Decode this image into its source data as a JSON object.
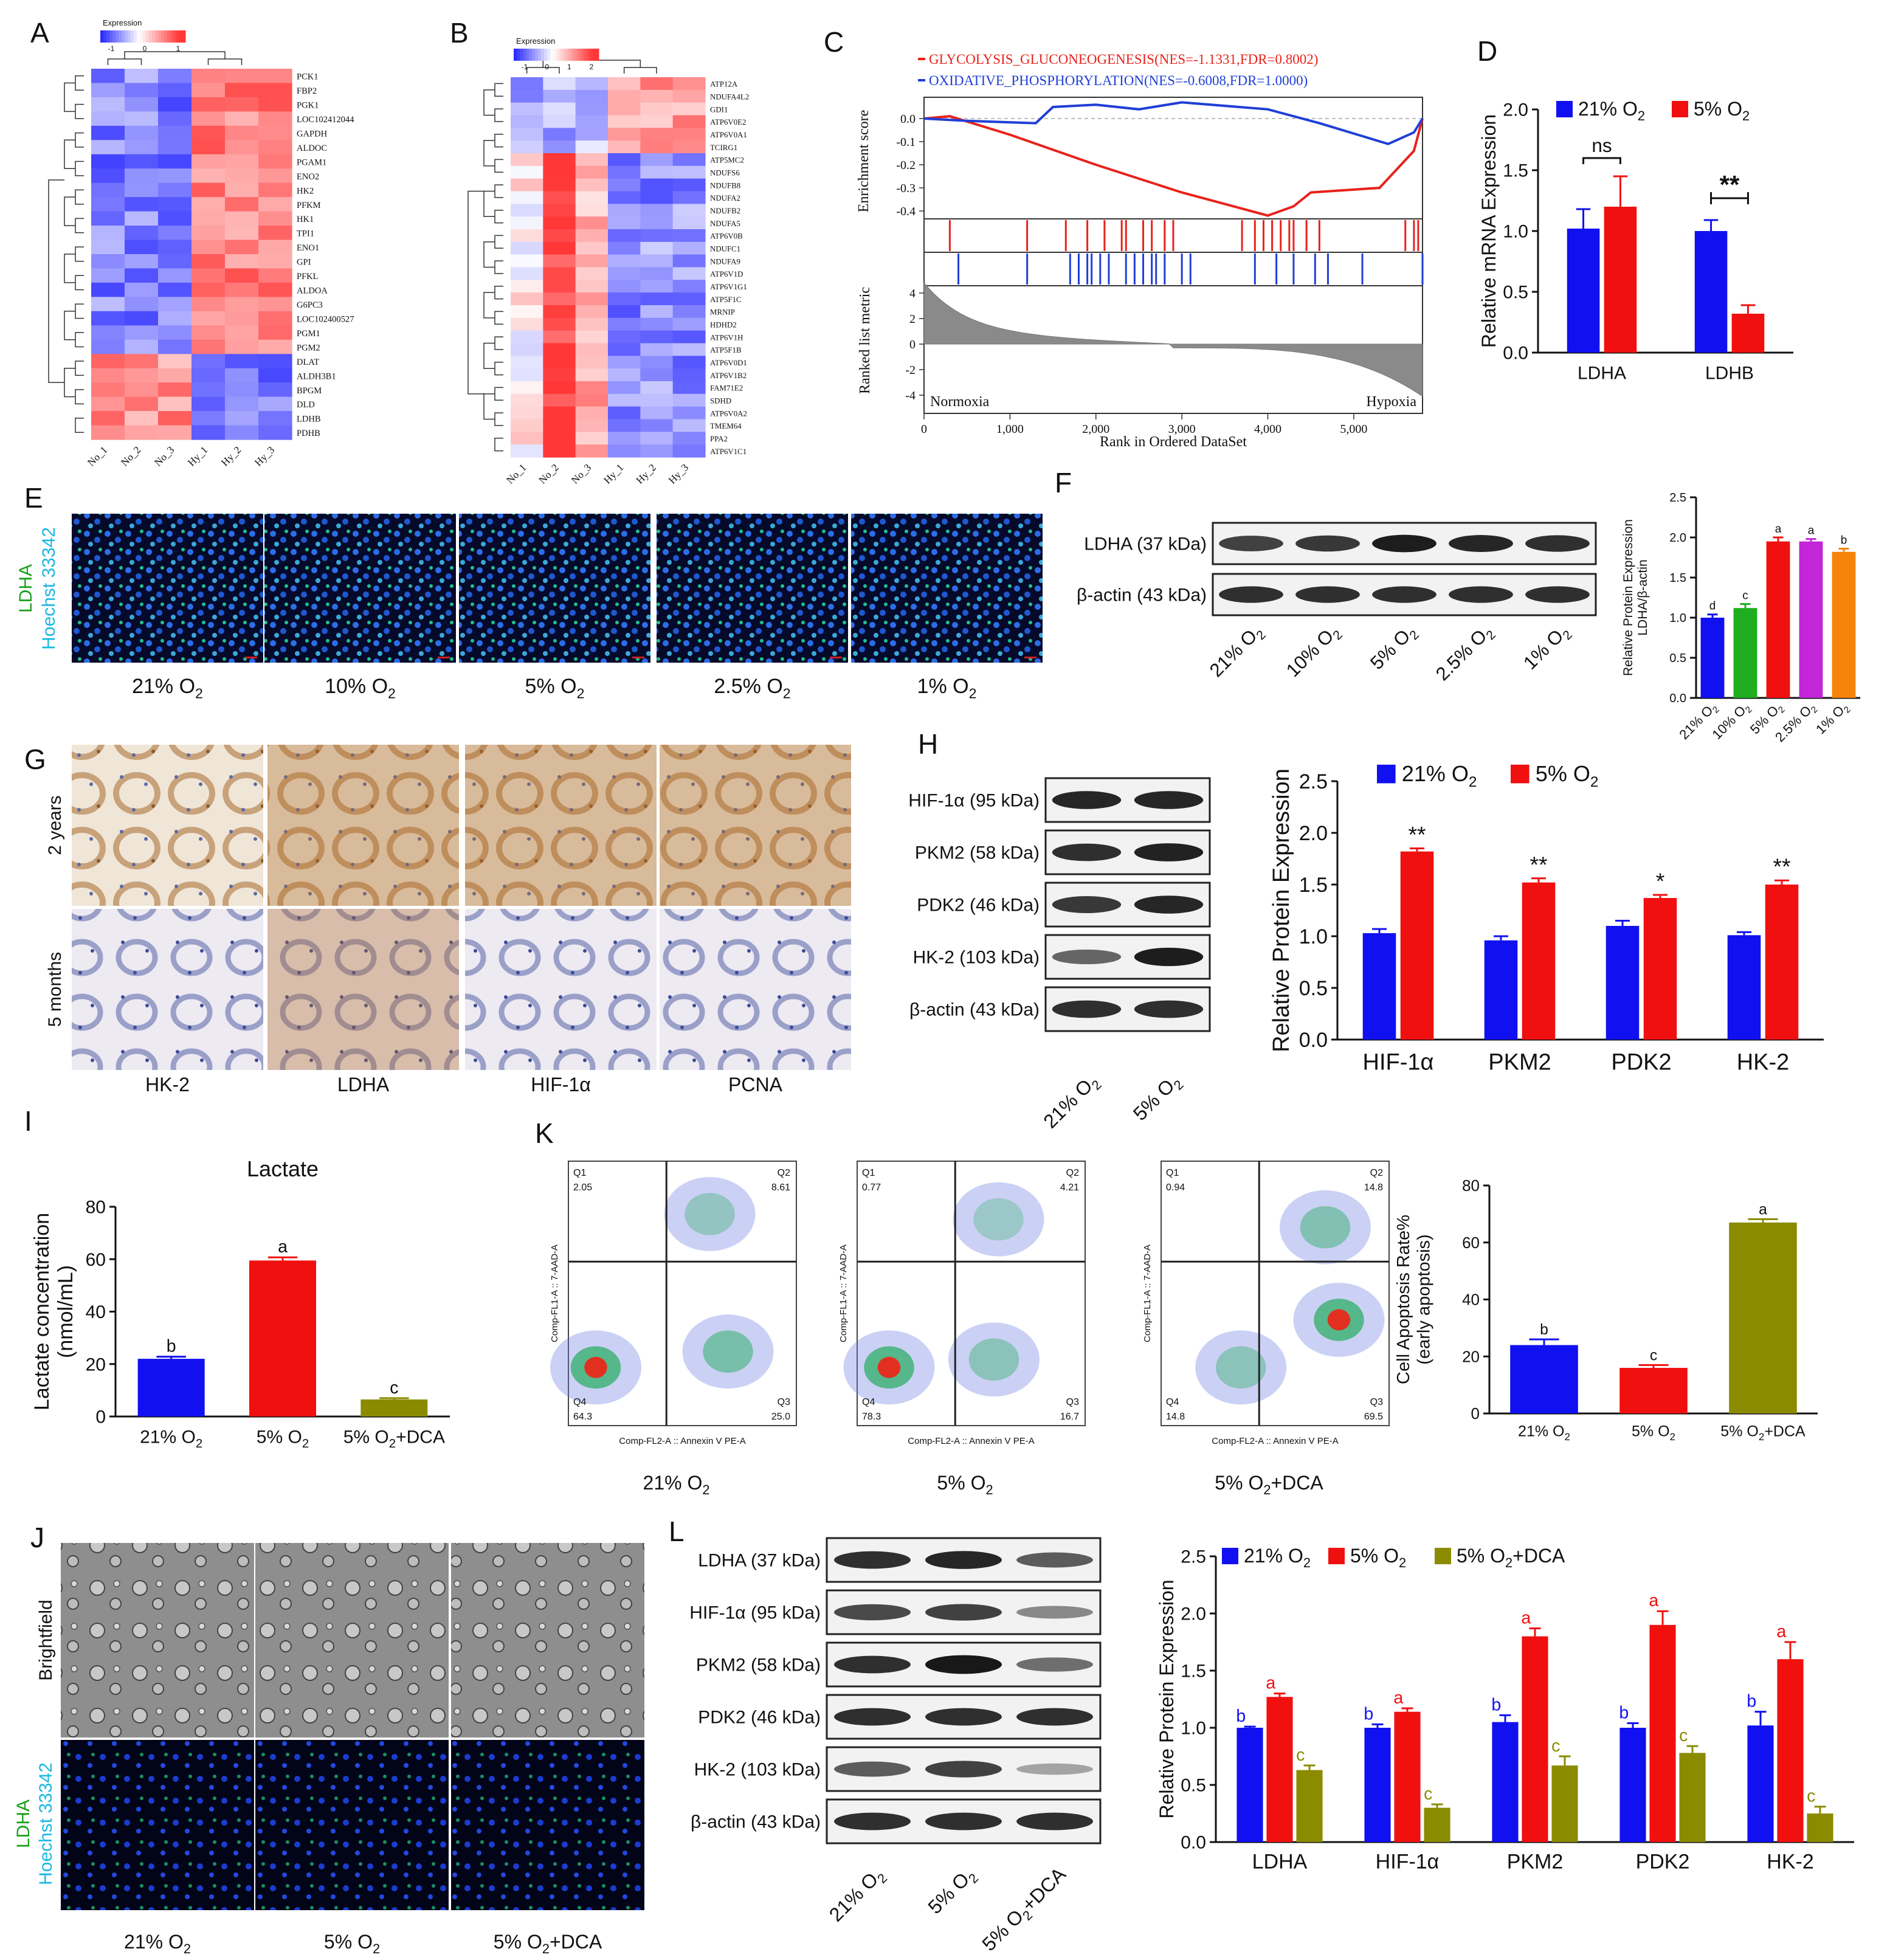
{
  "panel_letters": [
    "A",
    "B",
    "C",
    "D",
    "E",
    "F",
    "G",
    "H",
    "I",
    "K",
    "J",
    "L"
  ],
  "heatmap_a": {
    "legend_title": "Expression",
    "legend_ticks": [
      "-1",
      "0",
      "1"
    ],
    "genes": [
      "PCK1",
      "FBP2",
      "PGK1",
      "LOC102412044",
      "GAPDH",
      "ALDOC",
      "PGAM1",
      "ENO2",
      "HK2",
      "PFKM",
      "HK1",
      "TPI1",
      "ENO1",
      "GPI",
      "PFKL",
      "ALDOA",
      "G6PC3",
      "LOC102400527",
      "PGM1",
      "PGM2",
      "DLAT",
      "ALDH3B1",
      "BPGM",
      "DLD",
      "LDHB",
      "PDHB"
    ],
    "samples": [
      "No_1",
      "No_2",
      "No_3",
      "Hy_1",
      "Hy_2",
      "Hy_3"
    ]
  },
  "heatmap_b": {
    "legend_title": "Expression",
    "legend_ticks": [
      "-1",
      "0",
      "1",
      "2"
    ],
    "genes": [
      "ATP12A",
      "NDUFA4L2",
      "GDI1",
      "ATP6V0E2",
      "ATP6V0A1",
      "TCIRG1",
      "ATP5MC2",
      "NDUFS6",
      "NDUFB8",
      "NDUFA2",
      "NDUFB2",
      "NDUFA5",
      "ATP6V0B",
      "NDUFC1",
      "NDUFA9",
      "ATP6V1D",
      "ATP6V1G1",
      "ATP5F1C",
      "MRNIP",
      "HDHD2",
      "ATP6V1H",
      "ATP5F1B",
      "ATP6V0D1",
      "ATP6V1B2",
      "FAM71E2",
      "SDHD",
      "ATP6V0A2",
      "TMEM64",
      "PPA2",
      "ATP6V1C1"
    ],
    "samples": [
      "No_1",
      "No_2",
      "No_3",
      "Hy_1",
      "Hy_2",
      "Hy_3"
    ]
  },
  "gsea": {
    "legend": [
      {
        "name": "GLYCOLYSIS_GLUCONEOGENESIS(NES=-1.1331,FDR=0.8002)",
        "color": "#e8221b"
      },
      {
        "name": "OXIDATIVE_PHOSPHORYLATION(NES=-0.6008,FDR=1.0000)",
        "color": "#1f3fd6"
      }
    ],
    "ylabel_top": "Enrichment score",
    "ylabel_bottom": "Ranked list metric",
    "xlabel": "Rank in Ordered DataSet",
    "left_label": "Normoxia",
    "right_label": "Hypoxia",
    "es_ticks": [
      "0.0",
      "-0.1",
      "-0.2",
      "-0.3",
      "-0.4"
    ],
    "metric_ticks": [
      "4",
      "2",
      "0",
      "-2",
      "-4"
    ],
    "x_ticks": [
      "0",
      "1,000",
      "2,000",
      "3,000",
      "4,000",
      "5,000"
    ]
  },
  "labels_e": [
    "21% O2",
    "10% O2",
    "5% O2",
    "2.5% O2",
    "1% O2"
  ],
  "stain_e": {
    "line1": "LDHA",
    "line2": "Hoechst 33342"
  },
  "blot_f": {
    "bands": [
      "LDHA (37 kDa)",
      "β-actin (43 kDa)"
    ],
    "lanes": [
      "21% O2",
      "10% O2",
      "5% O2",
      "2.5% O2",
      "1% O2"
    ]
  },
  "ihc_g": {
    "rows": [
      "2 years",
      "5 months"
    ],
    "cols": [
      "HK-2",
      "LDHA",
      "HIF-1α",
      "PCNA"
    ]
  },
  "blot_h": {
    "bands": [
      "HIF-1α (95 kDa)",
      "PKM2 (58 kDa)",
      "PDK2 (46 kDa)",
      "HK-2 (103 kDa)",
      "β-actin (43 kDa)"
    ],
    "lanes": [
      "21% O2",
      "5% O2"
    ]
  },
  "flow_k": {
    "panels": [
      {
        "label": "21% O2",
        "q1": "2.05",
        "q2": "8.61",
        "q3": "25.0",
        "q4": "64.3"
      },
      {
        "label": "5% O2",
        "q1": "0.77",
        "q2": "4.21",
        "q3": "16.7",
        "q4": "78.3"
      },
      {
        "label": "5% O2+DCA",
        "q1": "0.94",
        "q2": "14.8",
        "q3": "69.5",
        "q4": "14.8"
      }
    ],
    "xlabel": "Comp-FL2-A :: Annexin V PE-A",
    "ylabel": "Comp-FL1-A :: 7-AAD-A",
    "quadrant_names": [
      "Q1",
      "Q2",
      "Q3",
      "Q4"
    ]
  },
  "brightfield_j": {
    "row1": "Brightfield",
    "row2a": "LDHA",
    "row2b": "Hoechst 33342",
    "labels": [
      "21% O2",
      "5% O2",
      "5% O2+DCA"
    ]
  },
  "blot_l": {
    "bands": [
      "LDHA (37 kDa)",
      "HIF-1α (95 kDa)",
      "PKM2 (58 kDa)",
      "PDK2 (46 kDa)",
      "HK-2 (103 kDa)",
      "β-actin (43 kDa)"
    ],
    "lanes": [
      "21% O2",
      "5% O2",
      "5% O2+DCA"
    ]
  },
  "colors": {
    "blue": "#1010f0",
    "red": "#f01010",
    "olive": "#8b8b00",
    "green": "#1fae1f",
    "magenta": "#c326d8",
    "orange": "#f5840c"
  },
  "chart_data": [
    {
      "id": "D",
      "type": "bar",
      "categories": [
        "LDHA",
        "LDHB"
      ],
      "series": [
        {
          "name": "21% O2",
          "color": "#1010f0",
          "values": [
            1.02,
            1.0
          ],
          "errors": [
            0.16,
            0.09
          ]
        },
        {
          "name": "5% O2",
          "color": "#f01010",
          "values": [
            1.2,
            0.32
          ],
          "errors": [
            0.25,
            0.07
          ]
        }
      ],
      "ylabel": "Relative mRNA Expression",
      "ylim": [
        0,
        2.0
      ],
      "yticks": [
        "0.0",
        "0.5",
        "1.0",
        "1.5",
        "2.0"
      ],
      "annotations": [
        "ns",
        "**"
      ],
      "legend": "top"
    },
    {
      "id": "F",
      "type": "bar",
      "categories": [
        "21% O2",
        "10% O2",
        "5% O2",
        "2.5% O2",
        "1% O2"
      ],
      "values": [
        1.0,
        1.12,
        1.95,
        1.95,
        1.82
      ],
      "errors": [
        0.04,
        0.05,
        0.05,
        0.03,
        0.04
      ],
      "colors": [
        "#1010f0",
        "#1fae1f",
        "#f01010",
        "#c326d8",
        "#f5840c"
      ],
      "letters": [
        "d",
        "c",
        "a",
        "a",
        "b"
      ],
      "ylabel": "Relative Protein Expression LDHA/β-actin",
      "ylabel1": "Relative Protein Expression",
      "ylabel2": "LDHA/β-actin",
      "ylim": [
        0,
        2.5
      ],
      "yticks": [
        "0.0",
        "0.5",
        "1.0",
        "1.5",
        "2.0",
        "2.5"
      ]
    },
    {
      "id": "H",
      "type": "bar",
      "categories": [
        "HIF-1α",
        "PKM2",
        "PDK2",
        "HK-2"
      ],
      "series": [
        {
          "name": "21% O2",
          "color": "#1010f0",
          "values": [
            1.03,
            0.96,
            1.1,
            1.01
          ],
          "errors": [
            0.04,
            0.04,
            0.05,
            0.03
          ]
        },
        {
          "name": "5% O2",
          "color": "#f01010",
          "values": [
            1.82,
            1.52,
            1.37,
            1.5
          ],
          "errors": [
            0.03,
            0.04,
            0.03,
            0.04
          ]
        }
      ],
      "annotations": [
        "**",
        "**",
        "*",
        "**"
      ],
      "ylabel": "Relative Protein Expression",
      "ylim": [
        0,
        2.5
      ],
      "yticks": [
        "0.0",
        "0.5",
        "1.0",
        "1.5",
        "2.0",
        "2.5"
      ],
      "legend": "top"
    },
    {
      "id": "I",
      "type": "bar",
      "title": "Lactate",
      "categories": [
        "21% O2",
        "5% O2",
        "5% O2+DCA"
      ],
      "values": [
        22,
        59.5,
        6.5
      ],
      "errors": [
        0.8,
        1.2,
        0.5
      ],
      "colors": [
        "#1010f0",
        "#f01010",
        "#8b8b00"
      ],
      "letters": [
        "b",
        "a",
        "c"
      ],
      "ylabel": "Lactate concentration (nmol/mL)",
      "ylabel1": "Lactate concentration",
      "ylabel2": "(nmol/mL)",
      "ylim": [
        0,
        80
      ],
      "yticks": [
        "0",
        "20",
        "40",
        "60",
        "80"
      ]
    },
    {
      "id": "K",
      "type": "bar",
      "categories": [
        "21% O2",
        "5% O2",
        "5% O2+DCA"
      ],
      "values": [
        24,
        16,
        67
      ],
      "errors": [
        2.0,
        1.0,
        1.2
      ],
      "colors": [
        "#1010f0",
        "#f01010",
        "#8b8b00"
      ],
      "letters": [
        "b",
        "c",
        "a"
      ],
      "ylabel": "Cell Apoptosis Rate% (early apoptosis)",
      "ylabel1": "Cell Apoptosis Rate%",
      "ylabel2": "(early apoptosis)",
      "ylim": [
        0,
        80
      ],
      "yticks": [
        "0",
        "20",
        "40",
        "60",
        "80"
      ]
    },
    {
      "id": "L",
      "type": "bar",
      "categories": [
        "LDHA",
        "HIF-1α",
        "PKM2",
        "PDK2",
        "HK-2"
      ],
      "series": [
        {
          "name": "21% O2",
          "color": "#1010f0",
          "values": [
            1.0,
            1.0,
            1.05,
            1.0,
            1.02
          ],
          "errors": [
            0.01,
            0.03,
            0.06,
            0.04,
            0.12
          ]
        },
        {
          "name": "5% O2",
          "color": "#f01010",
          "values": [
            1.27,
            1.14,
            1.8,
            1.9,
            1.6
          ],
          "errors": [
            0.03,
            0.03,
            0.07,
            0.12,
            0.15
          ]
        },
        {
          "name": "5% O2+DCA",
          "color": "#8b8b00",
          "values": [
            0.63,
            0.3,
            0.67,
            0.78,
            0.25
          ],
          "errors": [
            0.04,
            0.03,
            0.08,
            0.06,
            0.06
          ]
        }
      ],
      "letters": [
        [
          "b",
          "a",
          "c"
        ],
        [
          "b",
          "a",
          "c"
        ],
        [
          "b",
          "a",
          "c"
        ],
        [
          "b",
          "a",
          "c"
        ],
        [
          "b",
          "a",
          "c"
        ]
      ],
      "ylabel": "Relative Protein Expression",
      "ylim": [
        0,
        2.5
      ],
      "yticks": [
        "0.0",
        "0.5",
        "1.0",
        "1.5",
        "2.0",
        "2.5"
      ],
      "legend": "top"
    }
  ]
}
